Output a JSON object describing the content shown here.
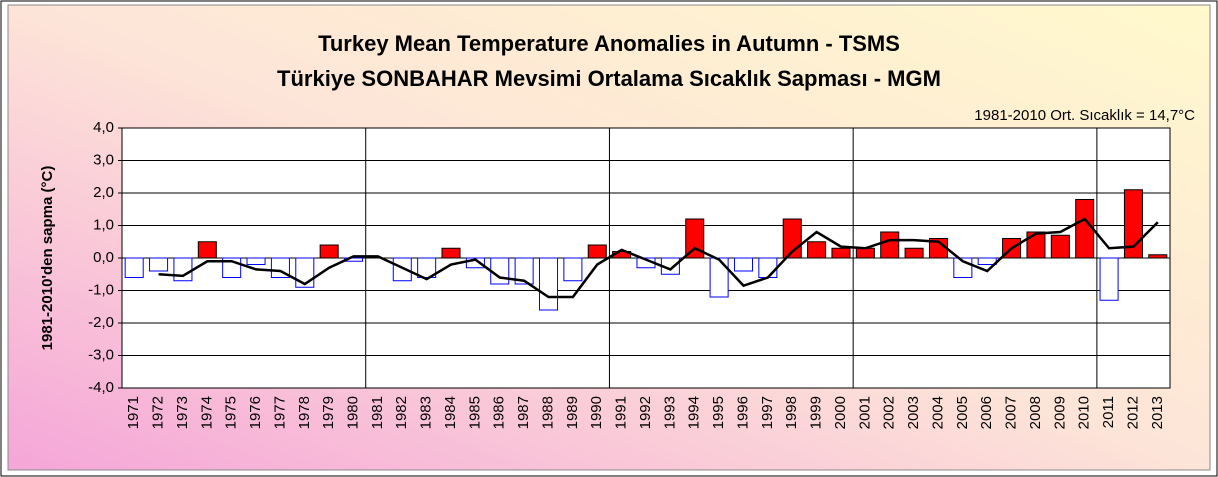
{
  "chart_data": {
    "type": "bar",
    "title": "Turkey Mean Temperature Anomalies in Autumn  - TSMS",
    "subtitle": "Türkiye SONBAHAR Mevsimi Ortalama Sıcaklık Sapması - MGM",
    "annotation": "1981-2010 Ort. Sıcaklık = 14,7°C",
    "y_label": "1981-2010'den sapma (°C)",
    "categories": [
      "1971",
      "1972",
      "1973",
      "1974",
      "1975",
      "1976",
      "1977",
      "1978",
      "1979",
      "1980",
      "1981",
      "1982",
      "1983",
      "1984",
      "1985",
      "1986",
      "1987",
      "1988",
      "1989",
      "1990",
      "1991",
      "1992",
      "1993",
      "1994",
      "1995",
      "1996",
      "1997",
      "1998",
      "1999",
      "2000",
      "2001",
      "2002",
      "2003",
      "2004",
      "2005",
      "2006",
      "2007",
      "2008",
      "2009",
      "2010",
      "2011",
      "2012",
      "2013"
    ],
    "values": [
      -0.6,
      -0.4,
      -0.7,
      0.5,
      -0.6,
      -0.2,
      -0.6,
      -0.9,
      0.4,
      -0.1,
      0.0,
      -0.7,
      -0.6,
      0.3,
      -0.3,
      -0.8,
      -0.8,
      -1.6,
      -0.7,
      0.4,
      0.2,
      -0.3,
      -0.5,
      1.2,
      -1.2,
      -0.4,
      -0.6,
      1.2,
      0.5,
      0.3,
      0.3,
      0.8,
      0.3,
      0.6,
      -0.6,
      -0.2,
      0.6,
      0.8,
      0.7,
      1.8,
      -1.3,
      2.1,
      0.1
    ],
    "trend": [
      null,
      -0.5,
      -0.55,
      -0.1,
      -0.1,
      -0.35,
      -0.4,
      -0.8,
      -0.3,
      0.05,
      0.05,
      -0.3,
      -0.65,
      -0.2,
      -0.05,
      -0.6,
      -0.7,
      -1.2,
      -1.2,
      -0.2,
      0.25,
      -0.05,
      -0.35,
      0.3,
      -0.05,
      -0.85,
      -0.6,
      0.2,
      0.8,
      0.35,
      0.3,
      0.55,
      0.55,
      0.5,
      -0.1,
      -0.4,
      0.3,
      0.75,
      0.8,
      1.2,
      0.3,
      0.35,
      1.1
    ],
    "positive_color": "#ff0000",
    "negative_color": "#ffffff",
    "negative_border": "#0000ff",
    "trend_color": "#000000",
    "ylim": [
      -4,
      4
    ],
    "yticks": [
      {
        "value": -4,
        "label": "-4,0"
      },
      {
        "value": -3,
        "label": "-3,0"
      },
      {
        "value": -2,
        "label": "-2,0"
      },
      {
        "value": -1,
        "label": "-1,0"
      },
      {
        "value": 0,
        "label": "0,0"
      },
      {
        "value": 1,
        "label": "1,0"
      },
      {
        "value": 2,
        "label": "2,0"
      },
      {
        "value": 3,
        "label": "3,0"
      },
      {
        "value": 4,
        "label": "4,0"
      }
    ],
    "grid": true
  }
}
